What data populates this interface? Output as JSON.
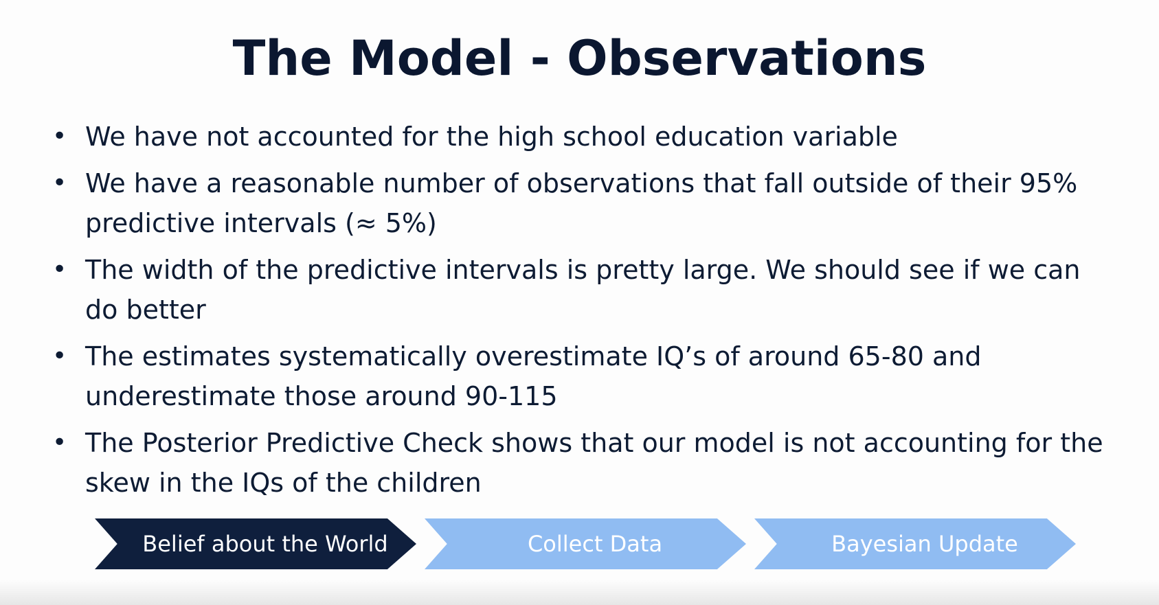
{
  "slide": {
    "title": "The Model - Observations",
    "bullets": [
      {
        "text": "We have not accounted for the high school education variable"
      },
      {
        "text": "We have a reasonable number of observations that fall outside of their 95% predictive intervals (≈ 5%)"
      },
      {
        "text": "The width of the predictive intervals is pretty large. We should see if we can do better"
      },
      {
        "text": "The estimates systematically overestimate IQ’s of around 65-80 and underestimate those around 90-115"
      },
      {
        "text": "The Posterior Predictive Check shows that our model is not accounting for the skew in the IQs of the children"
      }
    ],
    "bullet_symbol": "•",
    "process": {
      "steps": [
        {
          "label": "Belief about the World",
          "state": "active"
        },
        {
          "label": "Collect Data",
          "state": "inactive"
        },
        {
          "label": "Bayesian Update",
          "state": "inactive"
        }
      ]
    }
  },
  "colors": {
    "text": "#0d1b33",
    "active_step": "#0f1f3d",
    "inactive_step": "#90bcf2"
  }
}
